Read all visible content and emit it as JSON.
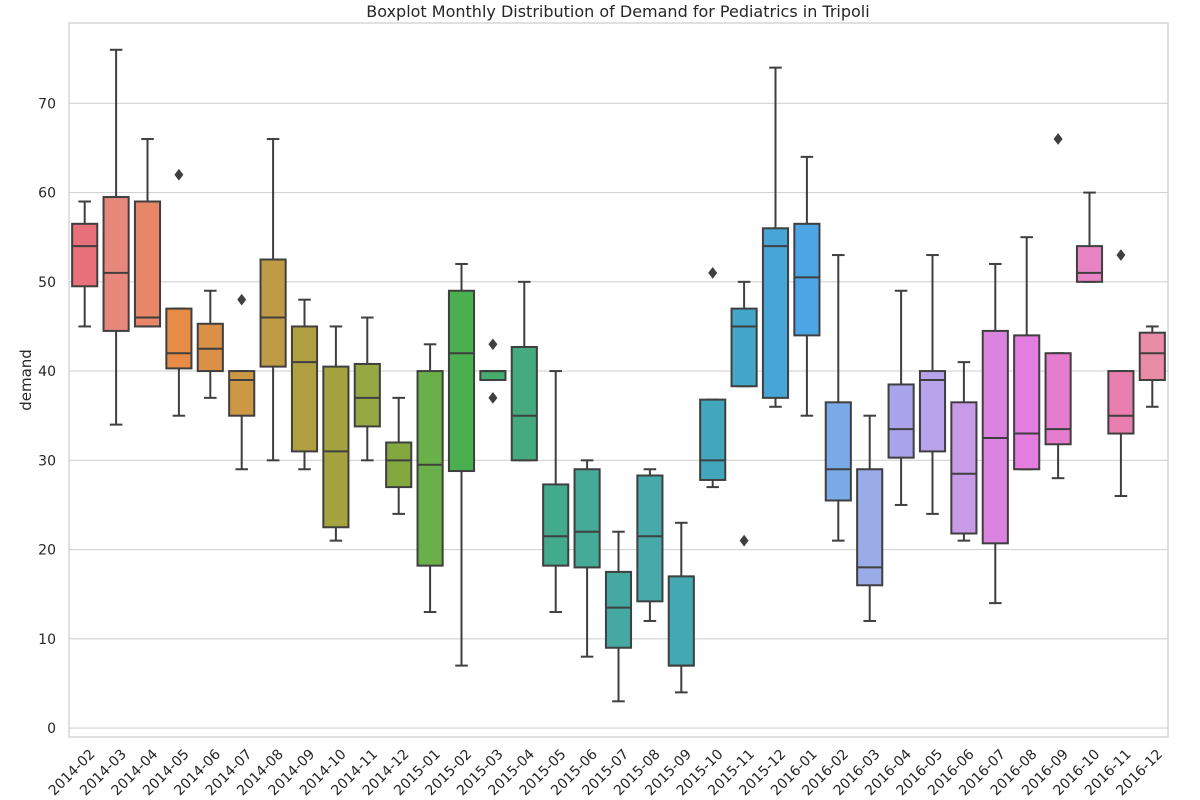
{
  "chart_data": {
    "type": "boxplot",
    "title": "Boxplot Monthly Distribution of Demand for Pediatrics in Tripoli",
    "xlabel": "",
    "ylabel": "demand",
    "ylim": [
      -1,
      79
    ],
    "yticks": [
      0,
      10,
      20,
      30,
      40,
      50,
      60,
      70
    ],
    "grid": "horizontal",
    "categories": [
      "2014-02",
      "2014-03",
      "2014-04",
      "2014-05",
      "2014-06",
      "2014-07",
      "2014-08",
      "2014-09",
      "2014-10",
      "2014-11",
      "2014-12",
      "2015-01",
      "2015-02",
      "2015-03",
      "2015-04",
      "2015-05",
      "2015-06",
      "2015-07",
      "2015-08",
      "2015-09",
      "2015-10",
      "2015-11",
      "2015-12",
      "2016-01",
      "2016-02",
      "2016-03",
      "2016-04",
      "2016-05",
      "2016-06",
      "2016-07",
      "2016-08",
      "2016-09",
      "2016-10",
      "2016-11",
      "2016-12"
    ],
    "boxes": [
      {
        "whislo": 45,
        "q1": 49.5,
        "med": 54,
        "q3": 56.5,
        "whishi": 59,
        "fliers": [],
        "color": "#e8707b"
      },
      {
        "whislo": 34,
        "q1": 44.5,
        "med": 51,
        "q3": 59.5,
        "whishi": 76,
        "fliers": [],
        "color": "#e8877b"
      },
      {
        "whislo": 45,
        "q1": 45,
        "med": 46,
        "q3": 59,
        "whishi": 66,
        "fliers": [],
        "color": "#e8866a"
      },
      {
        "whislo": 35,
        "q1": 40.3,
        "med": 42,
        "q3": 47,
        "whishi": 47,
        "fliers": [
          62
        ],
        "color": "#e88b46"
      },
      {
        "whislo": 37,
        "q1": 40,
        "med": 42.5,
        "q3": 45.3,
        "whishi": 49,
        "fliers": [],
        "color": "#db9048"
      },
      {
        "whislo": 29,
        "q1": 35,
        "med": 39,
        "q3": 40,
        "whishi": 40,
        "fliers": [
          48
        ],
        "color": "#cd9843"
      },
      {
        "whislo": 30,
        "q1": 40.5,
        "med": 46,
        "q3": 52.5,
        "whishi": 66,
        "fliers": [],
        "color": "#c09b45"
      },
      {
        "whislo": 29,
        "q1": 31,
        "med": 41,
        "q3": 45,
        "whishi": 48,
        "fliers": [],
        "color": "#b0a041"
      },
      {
        "whislo": 21,
        "q1": 22.5,
        "med": 31,
        "q3": 40.5,
        "whishi": 45,
        "fliers": [],
        "color": "#a5a340"
      },
      {
        "whislo": 30,
        "q1": 33.8,
        "med": 37,
        "q3": 40.8,
        "whishi": 46,
        "fliers": [],
        "color": "#96a843"
      },
      {
        "whislo": 24,
        "q1": 27,
        "med": 30,
        "q3": 32,
        "whishi": 37,
        "fliers": [],
        "color": "#82a83f"
      },
      {
        "whislo": 13,
        "q1": 18.2,
        "med": 29.5,
        "q3": 40,
        "whishi": 43,
        "fliers": [],
        "color": "#6ab04a"
      },
      {
        "whislo": 7,
        "q1": 28.8,
        "med": 42,
        "q3": 49,
        "whishi": 52,
        "fliers": [],
        "color": "#4aaf4f"
      },
      {
        "whislo": 39,
        "q1": 39,
        "med": 40,
        "q3": 40,
        "whishi": 40,
        "fliers": [
          43,
          37
        ],
        "color": "#46ad6e"
      },
      {
        "whislo": 30,
        "q1": 30,
        "med": 35,
        "q3": 42.7,
        "whishi": 50,
        "fliers": [],
        "color": "#45ab7e"
      },
      {
        "whislo": 13,
        "q1": 18.2,
        "med": 21.5,
        "q3": 27.3,
        "whishi": 40,
        "fliers": [],
        "color": "#44aa8c"
      },
      {
        "whislo": 8,
        "q1": 18,
        "med": 22,
        "q3": 29,
        "whishi": 30,
        "fliers": [],
        "color": "#45aa98"
      },
      {
        "whislo": 3,
        "q1": 9,
        "med": 13.5,
        "q3": 17.5,
        "whishi": 22,
        "fliers": [],
        "color": "#45a9a1"
      },
      {
        "whislo": 12,
        "q1": 14.2,
        "med": 21.5,
        "q3": 28.3,
        "whishi": 29,
        "fliers": [],
        "color": "#45aaa9"
      },
      {
        "whislo": 4,
        "q1": 7,
        "med": 7,
        "q3": 17,
        "whishi": 23,
        "fliers": [],
        "color": "#44a8b2"
      },
      {
        "whislo": 27,
        "q1": 27.8,
        "med": 30,
        "q3": 36.8,
        "whishi": 36.8,
        "fliers": [
          51
        ],
        "color": "#42a6bc"
      },
      {
        "whislo": 38.3,
        "q1": 38.3,
        "med": 45,
        "q3": 47,
        "whishi": 50,
        "fliers": [
          21
        ],
        "color": "#44a6c8"
      },
      {
        "whislo": 36,
        "q1": 37,
        "med": 54,
        "q3": 56,
        "whishi": 74,
        "fliers": [],
        "color": "#48a6d6"
      },
      {
        "whislo": 35,
        "q1": 44,
        "med": 50.5,
        "q3": 56.5,
        "whishi": 64,
        "fliers": [],
        "color": "#4ca6e6"
      },
      {
        "whislo": 21,
        "q1": 25.5,
        "med": 29,
        "q3": 36.5,
        "whishi": 53,
        "fliers": [],
        "color": "#7aaae8"
      },
      {
        "whislo": 12,
        "q1": 16,
        "med": 18,
        "q3": 29,
        "whishi": 35,
        "fliers": [],
        "color": "#9aace8"
      },
      {
        "whislo": 25,
        "q1": 30.3,
        "med": 33.5,
        "q3": 38.5,
        "whishi": 49,
        "fliers": [],
        "color": "#aaa4ea"
      },
      {
        "whislo": 24,
        "q1": 31,
        "med": 39,
        "q3": 40,
        "whishi": 53,
        "fliers": [],
        "color": "#b8a4ea"
      },
      {
        "whislo": 21,
        "q1": 21.8,
        "med": 28.5,
        "q3": 36.5,
        "whishi": 41,
        "fliers": [],
        "color": "#c79be6"
      },
      {
        "whislo": 14,
        "q1": 20.7,
        "med": 32.5,
        "q3": 44.5,
        "whishi": 52,
        "fliers": [],
        "color": "#da84e0"
      },
      {
        "whislo": 29,
        "q1": 29,
        "med": 33,
        "q3": 44,
        "whishi": 55,
        "fliers": [],
        "color": "#e47ee0"
      },
      {
        "whislo": 28,
        "q1": 31.8,
        "med": 33.5,
        "q3": 42,
        "whishi": 42,
        "fliers": [
          66
        ],
        "color": "#e67cce"
      },
      {
        "whislo": 50,
        "q1": 50,
        "med": 51,
        "q3": 54,
        "whishi": 60,
        "fliers": [],
        "color": "#e884c6"
      },
      {
        "whislo": 26,
        "q1": 33,
        "med": 35,
        "q3": 40,
        "whishi": 40,
        "fliers": [
          53
        ],
        "color": "#e87fae"
      },
      {
        "whislo": 36,
        "q1": 39,
        "med": 42,
        "q3": 44.3,
        "whishi": 45,
        "fliers": [],
        "color": "#e88ba6"
      }
    ]
  }
}
